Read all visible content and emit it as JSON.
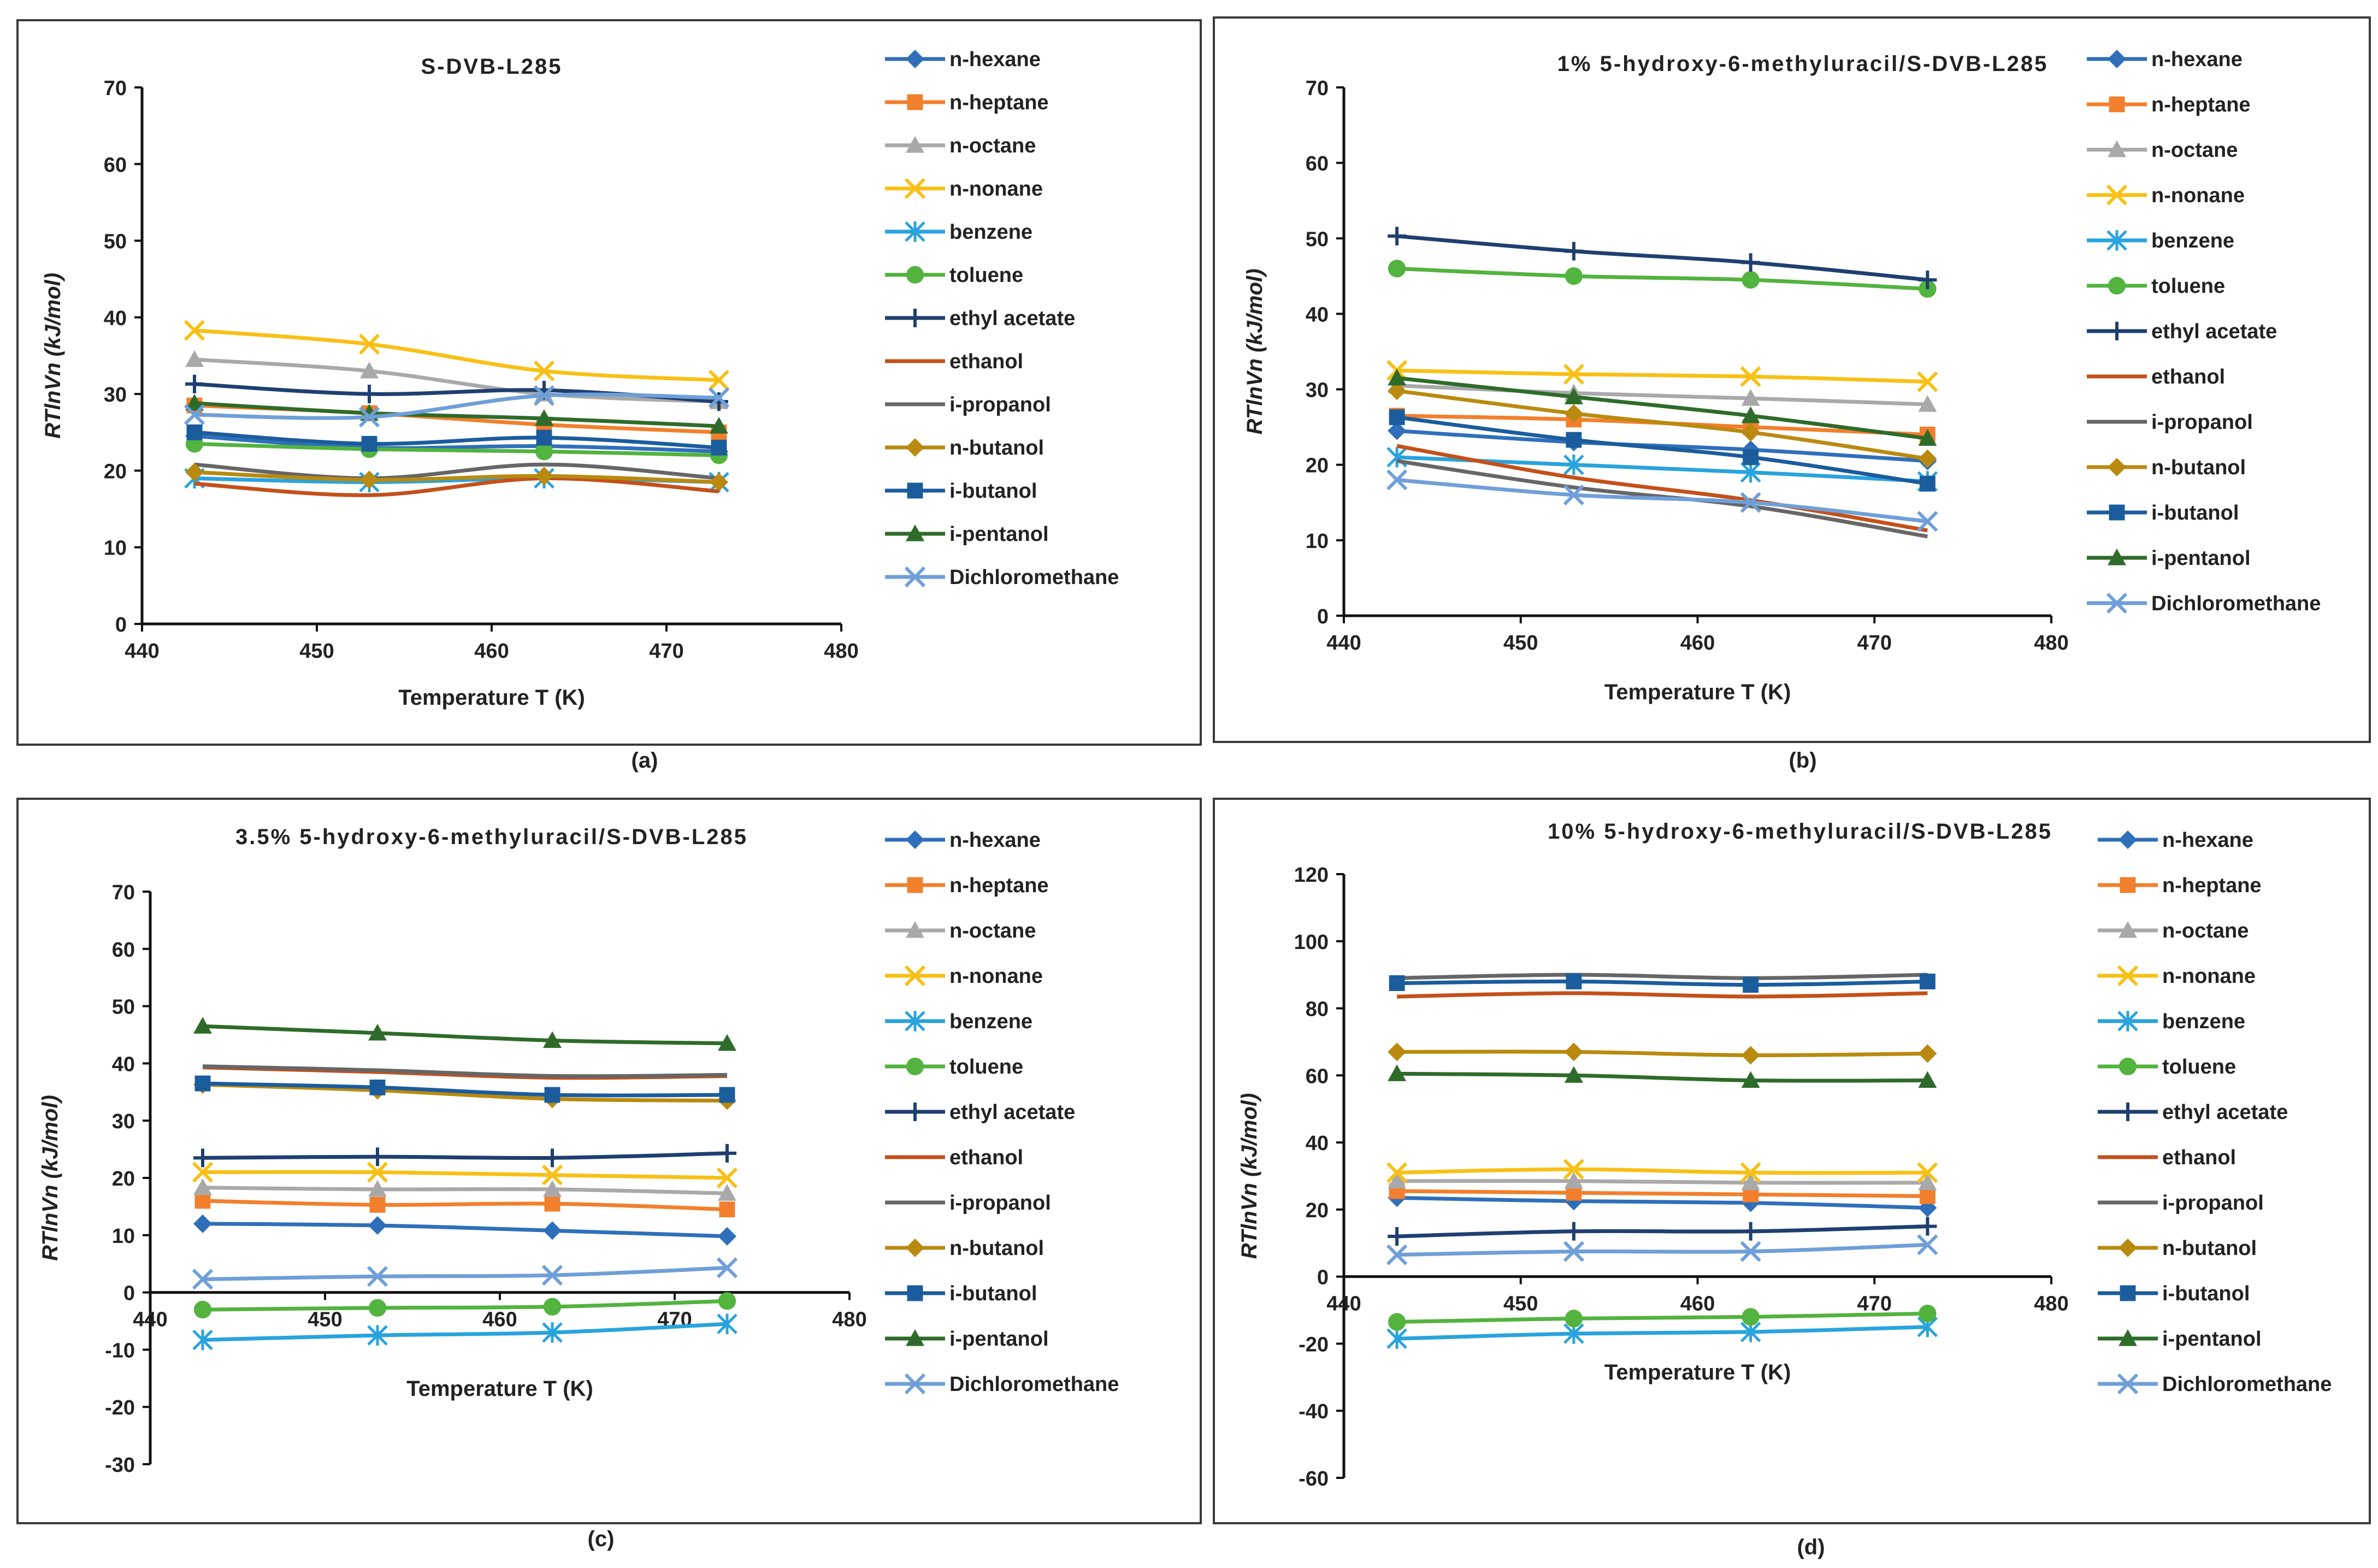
{
  "colors": {
    "n-hexane": "#2f6fba",
    "n-heptane": "#f27f2c",
    "n-octane": "#a9a9a9",
    "n-nonane": "#f8c016",
    "benzene": "#29a3dd",
    "toluene": "#52b33f",
    "ethyl acetate": "#1e3f70",
    "ethanol": "#c4501a",
    "i-propanol": "#666666",
    "n-butanol": "#b98a0f",
    "i-butanol": "#1b5c9d",
    "i-pentanol": "#2e6b2a",
    "Dichloromethane": "#6f9fd8"
  },
  "markers": {
    "n-hexane": "diamond",
    "n-heptane": "square",
    "n-octane": "triangle",
    "n-nonane": "x",
    "benzene": "star",
    "toluene": "circle",
    "ethyl acetate": "plus",
    "ethanol": "none",
    "i-propanol": "none",
    "n-butanol": "diamond",
    "i-butanol": "square",
    "i-pentanol": "triangle",
    "Dichloromethane": "x"
  },
  "chart_data": [
    {
      "type": "line",
      "caption": "(a)",
      "title": "S-DVB-L285",
      "xlabel": "Temperature T (K)",
      "ylabel": "RTlnVn (kJ/mol)",
      "xlim": [
        440,
        480
      ],
      "ylim": [
        0,
        70
      ],
      "xticks": [
        440,
        450,
        460,
        470,
        480
      ],
      "yticks": [
        0,
        10,
        20,
        30,
        40,
        50,
        60,
        70
      ],
      "x": [
        443,
        453,
        463,
        473
      ],
      "series": [
        {
          "name": "n-hexane",
          "values": [
            24.5,
            23.0,
            23.2,
            22.5
          ]
        },
        {
          "name": "n-heptane",
          "values": [
            28.5,
            27.5,
            26.0,
            25.0
          ]
        },
        {
          "name": "n-octane",
          "values": [
            34.5,
            33.0,
            30.0,
            29.0
          ]
        },
        {
          "name": "n-nonane",
          "values": [
            38.3,
            36.5,
            33.0,
            31.8
          ]
        },
        {
          "name": "benzene",
          "values": [
            19.0,
            18.5,
            19.0,
            18.5
          ]
        },
        {
          "name": "toluene",
          "values": [
            23.5,
            22.8,
            22.5,
            22.0
          ]
        },
        {
          "name": "ethyl acetate",
          "values": [
            31.3,
            30.0,
            30.5,
            29.0
          ]
        },
        {
          "name": "ethanol",
          "values": [
            18.3,
            16.8,
            19.0,
            17.3
          ]
        },
        {
          "name": "i-propanol",
          "values": [
            20.8,
            19.0,
            20.8,
            19.0
          ]
        },
        {
          "name": "n-butanol",
          "values": [
            19.8,
            18.8,
            19.3,
            18.5
          ]
        },
        {
          "name": "i-butanol",
          "values": [
            25.0,
            23.5,
            24.3,
            23.0
          ]
        },
        {
          "name": "i-pentanol",
          "values": [
            28.8,
            27.5,
            26.8,
            25.8
          ]
        },
        {
          "name": "Dichloromethane",
          "values": [
            27.3,
            27.0,
            29.8,
            29.5
          ]
        }
      ]
    },
    {
      "type": "line",
      "caption": "(b)",
      "title": "1% 5-hydroxy-6-methyluracil/S-DVB-L285",
      "xlabel": "Temperature T (K)",
      "ylabel": "RTlnVn (kJ/mol)",
      "xlim": [
        440,
        480
      ],
      "ylim": [
        0,
        70
      ],
      "xticks": [
        440,
        450,
        460,
        470,
        480
      ],
      "yticks": [
        0,
        10,
        20,
        30,
        40,
        50,
        60,
        70
      ],
      "x": [
        443,
        453,
        463,
        473
      ],
      "series": [
        {
          "name": "n-hexane",
          "values": [
            24.5,
            23.0,
            22.0,
            20.5
          ]
        },
        {
          "name": "n-heptane",
          "values": [
            26.5,
            26.0,
            25.0,
            24.0
          ]
        },
        {
          "name": "n-octane",
          "values": [
            30.5,
            29.5,
            28.8,
            28.0
          ]
        },
        {
          "name": "n-nonane",
          "values": [
            32.5,
            32.0,
            31.7,
            31.0
          ]
        },
        {
          "name": "benzene",
          "values": [
            21.0,
            20.0,
            19.0,
            17.8
          ]
        },
        {
          "name": "toluene",
          "values": [
            46.0,
            45.0,
            44.5,
            43.3
          ]
        },
        {
          "name": "ethyl acetate",
          "values": [
            50.3,
            48.3,
            46.8,
            44.5
          ]
        },
        {
          "name": "ethanol",
          "values": [
            22.5,
            18.3,
            15.3,
            11.3
          ]
        },
        {
          "name": "i-propanol",
          "values": [
            20.5,
            17.0,
            14.5,
            10.5
          ]
        },
        {
          "name": "n-butanol",
          "values": [
            29.8,
            26.8,
            24.3,
            20.8
          ]
        },
        {
          "name": "i-butanol",
          "values": [
            26.3,
            23.3,
            21.0,
            17.5
          ]
        },
        {
          "name": "i-pentanol",
          "values": [
            31.5,
            29.0,
            26.5,
            23.5
          ]
        },
        {
          "name": "Dichloromethane",
          "values": [
            18.0,
            16.0,
            15.0,
            12.5
          ]
        }
      ]
    },
    {
      "type": "line",
      "caption": "(c)",
      "title": "3.5% 5-hydroxy-6-methyluracil/S-DVB-L285",
      "xlabel": "Temperature T (K)",
      "ylabel": "RTlnVn (kJ/mol)",
      "xlim": [
        440,
        480
      ],
      "ylim": [
        -30,
        70
      ],
      "xticks": [
        440,
        450,
        460,
        470,
        480
      ],
      "yticks": [
        -30,
        -20,
        -10,
        0,
        10,
        20,
        30,
        40,
        50,
        60,
        70
      ],
      "x": [
        443,
        453,
        463,
        473
      ],
      "series": [
        {
          "name": "n-hexane",
          "values": [
            12.0,
            11.7,
            10.8,
            9.8
          ]
        },
        {
          "name": "n-heptane",
          "values": [
            16.0,
            15.3,
            15.5,
            14.5
          ]
        },
        {
          "name": "n-octane",
          "values": [
            18.3,
            18.0,
            18.0,
            17.3
          ]
        },
        {
          "name": "n-nonane",
          "values": [
            21.0,
            21.0,
            20.5,
            20.0
          ]
        },
        {
          "name": "benzene",
          "values": [
            -8.3,
            -7.5,
            -7.0,
            -5.5
          ]
        },
        {
          "name": "toluene",
          "values": [
            -3.0,
            -2.7,
            -2.5,
            -1.5
          ]
        },
        {
          "name": "ethyl acetate",
          "values": [
            23.5,
            23.7,
            23.5,
            24.3
          ]
        },
        {
          "name": "ethanol",
          "values": [
            39.3,
            38.5,
            37.5,
            37.8
          ]
        },
        {
          "name": "i-propanol",
          "values": [
            39.5,
            38.8,
            37.8,
            38.0
          ]
        },
        {
          "name": "n-butanol",
          "values": [
            36.3,
            35.3,
            33.8,
            33.5
          ]
        },
        {
          "name": "i-butanol",
          "values": [
            36.5,
            35.8,
            34.5,
            34.5
          ]
        },
        {
          "name": "i-pentanol",
          "values": [
            46.5,
            45.3,
            44.0,
            43.5
          ]
        },
        {
          "name": "Dichloromethane",
          "values": [
            2.3,
            2.8,
            3.0,
            4.3
          ]
        }
      ]
    },
    {
      "type": "line",
      "caption": "(d)",
      "title": "10% 5-hydroxy-6-methyluracil/S-DVB-L285",
      "xlabel": "Temperature T (K)",
      "ylabel": "RTlnVn (kJ/mol)",
      "xlim": [
        440,
        480
      ],
      "ylim": [
        -60,
        120
      ],
      "xticks": [
        440,
        450,
        460,
        470,
        480
      ],
      "yticks": [
        -60,
        -40,
        -20,
        0,
        20,
        40,
        60,
        80,
        100,
        120
      ],
      "x": [
        443,
        453,
        463,
        473
      ],
      "series": [
        {
          "name": "n-hexane",
          "values": [
            23.5,
            22.5,
            22.0,
            20.5
          ]
        },
        {
          "name": "n-heptane",
          "values": [
            25.5,
            25.0,
            24.5,
            24.0
          ]
        },
        {
          "name": "n-octane",
          "values": [
            28.5,
            28.5,
            28.0,
            28.0
          ]
        },
        {
          "name": "n-nonane",
          "values": [
            31.0,
            32.0,
            31.0,
            31.0
          ]
        },
        {
          "name": "benzene",
          "values": [
            -18.5,
            -17.0,
            -16.5,
            -15.0
          ]
        },
        {
          "name": "toluene",
          "values": [
            -13.5,
            -12.5,
            -12.0,
            -11.0
          ]
        },
        {
          "name": "ethyl acetate",
          "values": [
            12.0,
            13.5,
            13.5,
            15.0
          ]
        },
        {
          "name": "ethanol",
          "values": [
            83.5,
            84.5,
            83.5,
            84.5
          ]
        },
        {
          "name": "i-propanol",
          "values": [
            89.0,
            90.0,
            89.0,
            90.0
          ]
        },
        {
          "name": "n-butanol",
          "values": [
            67.0,
            67.0,
            66.0,
            66.5
          ]
        },
        {
          "name": "i-butanol",
          "values": [
            87.5,
            88.0,
            87.0,
            88.0
          ]
        },
        {
          "name": "i-pentanol",
          "values": [
            60.5,
            60.0,
            58.5,
            58.5
          ]
        },
        {
          "name": "Dichloromethane",
          "values": [
            6.5,
            7.5,
            7.5,
            9.5
          ]
        }
      ]
    }
  ]
}
